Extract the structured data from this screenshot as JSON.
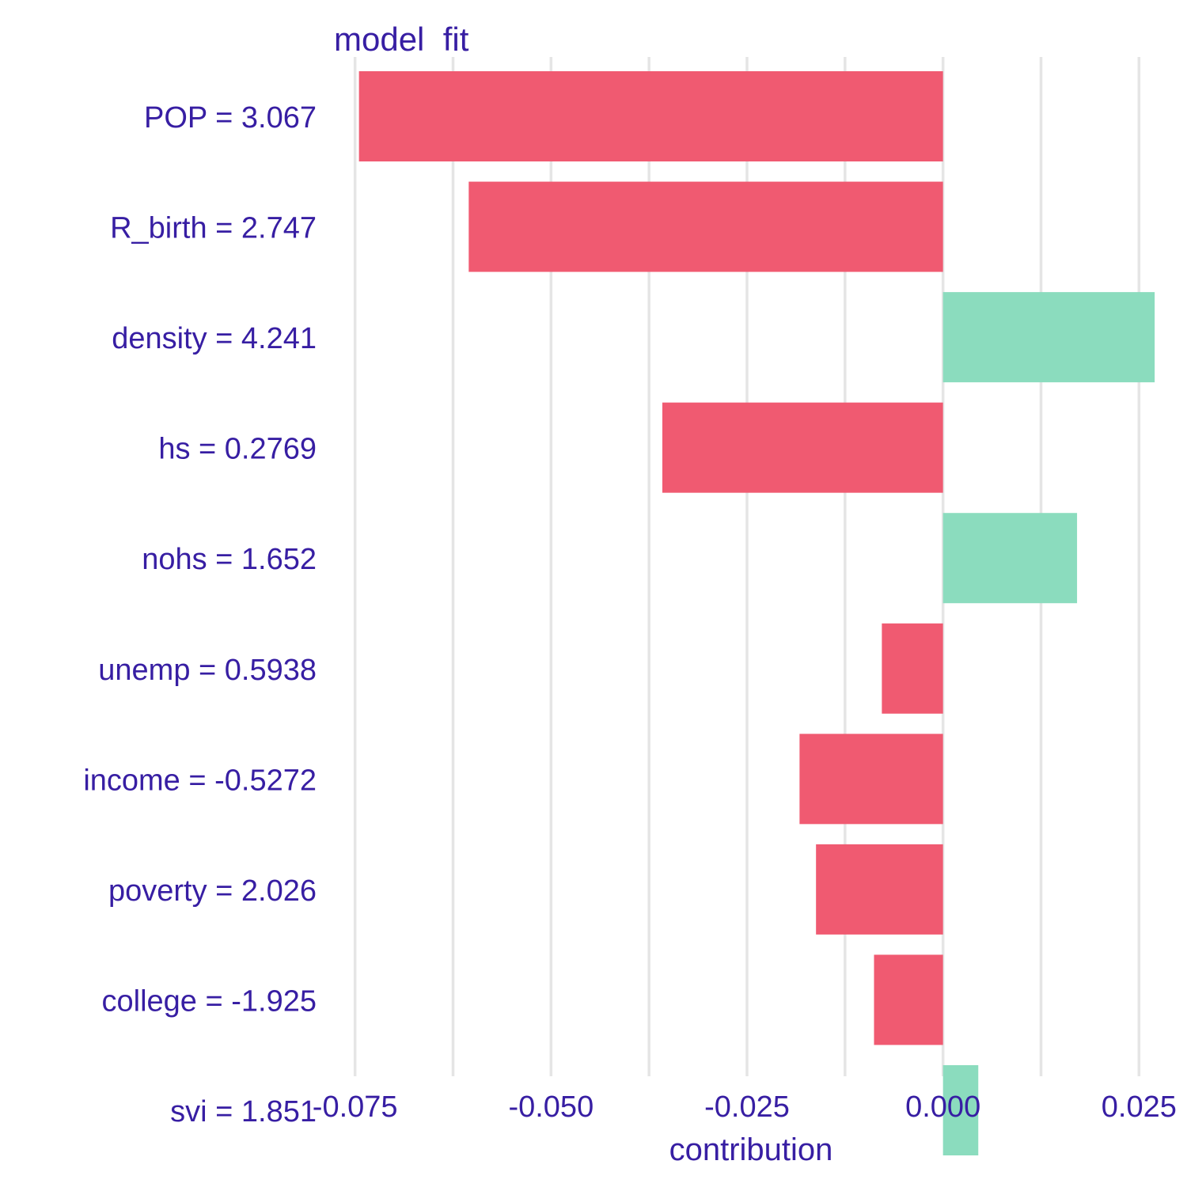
{
  "chart_data": {
    "type": "bar",
    "orientation": "horizontal",
    "title": "model  fit",
    "xlabel": "contribution",
    "ylabel": "",
    "xlim": [
      -0.0785,
      0.0285
    ],
    "x_ticks": [
      -0.075,
      -0.05,
      -0.025,
      0.0,
      0.025
    ],
    "x_tick_labels": [
      "-0.075",
      "-0.050",
      "-0.025",
      "0.000",
      "0.025"
    ],
    "x_minor_ticks": [
      -0.0625,
      -0.0375,
      -0.0125,
      0.0125
    ],
    "grid": true,
    "legend": "none",
    "categories": [
      "POP = 3.067",
      "R_birth = 2.747",
      "density = 4.241",
      "hs = 0.2769",
      "nohs = 1.652",
      "unemp = 0.5938",
      "income = -0.5272",
      "poverty = 2.026",
      "college = -1.925",
      "svi = 1.851"
    ],
    "values": [
      -0.0745,
      -0.0605,
      0.027,
      -0.0358,
      0.0171,
      -0.0078,
      -0.0183,
      -0.0162,
      -0.0088,
      0.0045
    ],
    "colors": {
      "positive": "#8bdcbe",
      "negative": "#f05a71",
      "text": "#371ea3",
      "grid": "#e5e5e5"
    }
  }
}
